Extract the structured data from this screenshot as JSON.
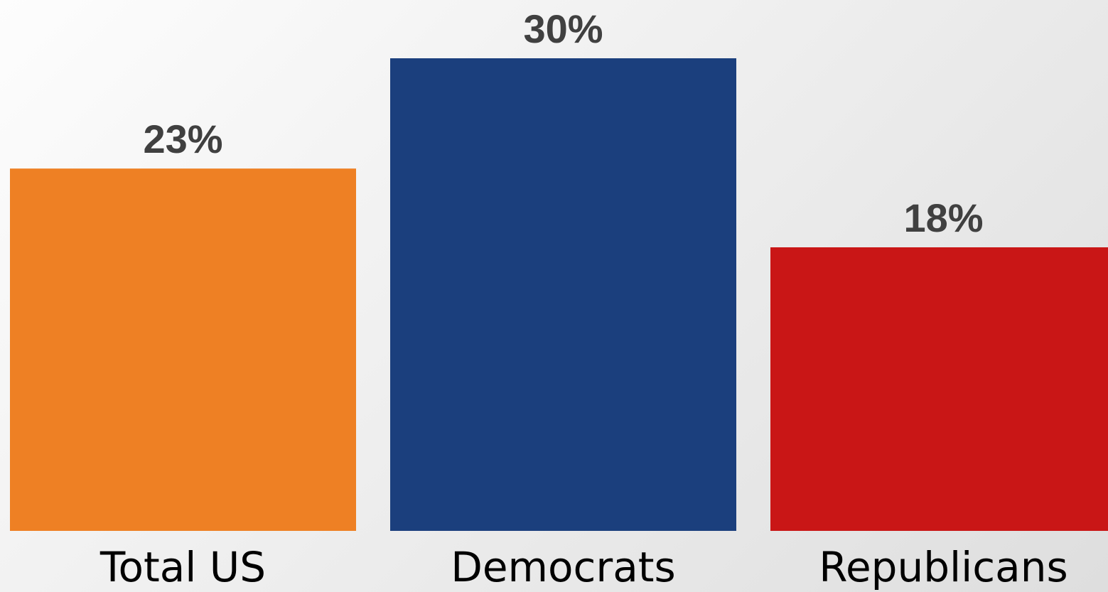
{
  "chart_data": {
    "type": "bar",
    "categories": [
      "Total US",
      "Democrats",
      "Republicans"
    ],
    "values": [
      23,
      30,
      18
    ],
    "value_labels": [
      "23%",
      "30%",
      "18%"
    ],
    "colors": [
      "#ee8024",
      "#1b3f7d",
      "#c91616"
    ],
    "title": "",
    "xlabel": "",
    "ylabel": "",
    "ylim": [
      0,
      30
    ],
    "grid": false,
    "legend": "none"
  }
}
